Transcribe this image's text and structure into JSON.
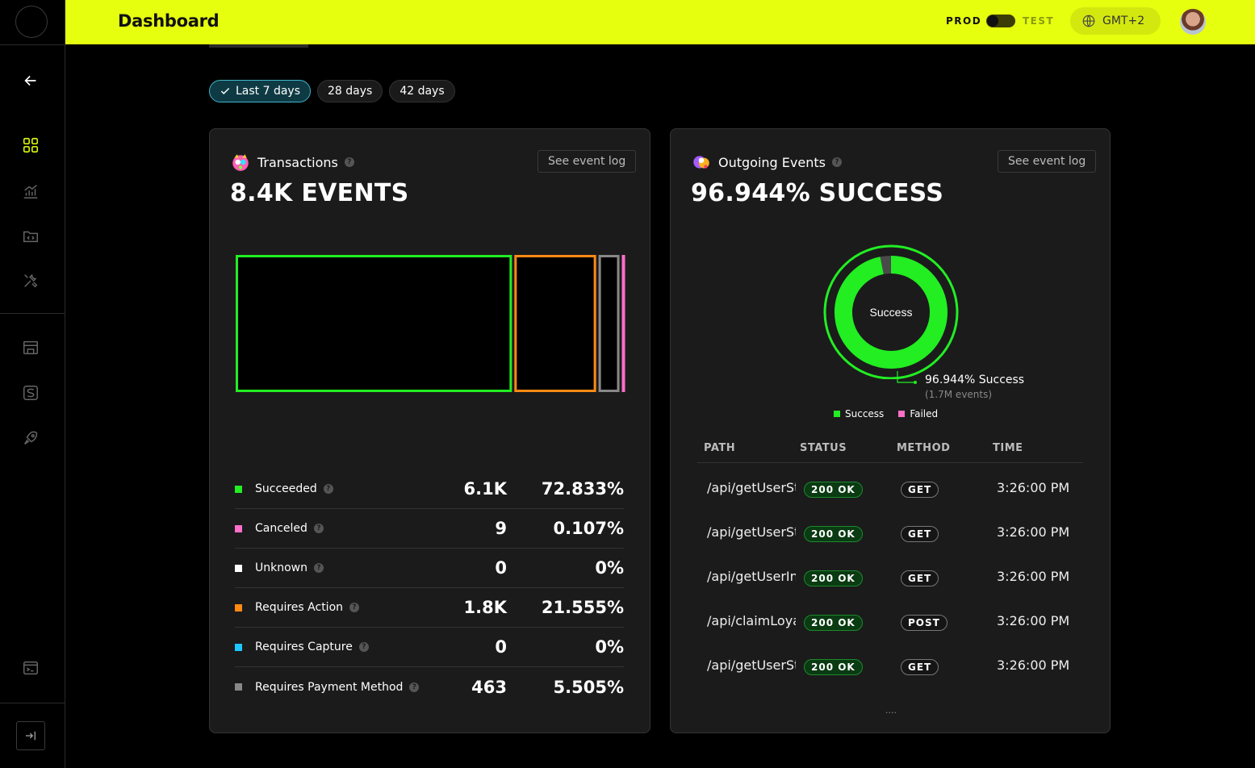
{
  "header": {
    "title": "Dashboard",
    "env_prod": "PROD",
    "env_test": "TEST",
    "timezone": "GMT+2"
  },
  "sidebar": {
    "icons": [
      "back-arrow-icon",
      "dashboard-grid-icon",
      "analytics-icon",
      "folder-code-icon",
      "tools-icon",
      "store-icon",
      "stripe-icon",
      "rocket-icon",
      "terminal-icon",
      "expand-icon"
    ]
  },
  "range_pills": [
    {
      "label": "Last 7 days",
      "active": true
    },
    {
      "label": "28 days",
      "active": false
    },
    {
      "label": "42 days",
      "active": false
    }
  ],
  "transactions": {
    "title": "Transactions",
    "button": "See event log",
    "headline": "8.4K EVENTS",
    "stats": [
      {
        "label": "Succeeded",
        "count": "6.1K",
        "pct": "72.833%",
        "color": "#22ee22",
        "share": 0.72833
      },
      {
        "label": "Canceled",
        "count": "9",
        "pct": "0.107%",
        "color": "#ff6fc8",
        "share": 0.00107
      },
      {
        "label": "Unknown",
        "count": "0",
        "pct": "0%",
        "color": "#ffffff",
        "share": 0
      },
      {
        "label": "Requires Action",
        "count": "1.8K",
        "pct": "21.555%",
        "color": "#ff8a14",
        "share": 0.21555
      },
      {
        "label": "Requires Capture",
        "count": "0",
        "pct": "0%",
        "color": "#1ec8ff",
        "share": 0
      },
      {
        "label": "Requires Payment Method",
        "count": "463",
        "pct": "5.505%",
        "color": "#888888",
        "share": 0.05505
      }
    ]
  },
  "outgoing": {
    "title": "Outgoing Events",
    "button": "See event log",
    "headline": "96.944% SUCCESS",
    "donut_center": "Success",
    "callout_main": "96.944% Success",
    "callout_sub": "(1.7M events)",
    "success_fraction": 0.96944,
    "legend": [
      {
        "label": "Success",
        "color": "#22ee22"
      },
      {
        "label": "Failed",
        "color": "#ff6fc8"
      }
    ],
    "table_headers": [
      "PATH",
      "STATUS",
      "METHOD",
      "TIME"
    ],
    "rows": [
      {
        "path": "/api/getUserSt",
        "status": "200 OK",
        "method": "GET",
        "time": "3:26:00 PM"
      },
      {
        "path": "/api/getUserSt",
        "status": "200 OK",
        "method": "GET",
        "time": "3:26:00 PM"
      },
      {
        "path": "/api/getUserIn",
        "status": "200 OK",
        "method": "GET",
        "time": "3:26:00 PM"
      },
      {
        "path": "/api/claimLoya",
        "status": "200 OK",
        "method": "POST",
        "time": "3:26:00 PM"
      },
      {
        "path": "/api/getUserSt",
        "status": "200 OK",
        "method": "GET",
        "time": "3:26:00 PM"
      }
    ],
    "more": "...."
  }
}
